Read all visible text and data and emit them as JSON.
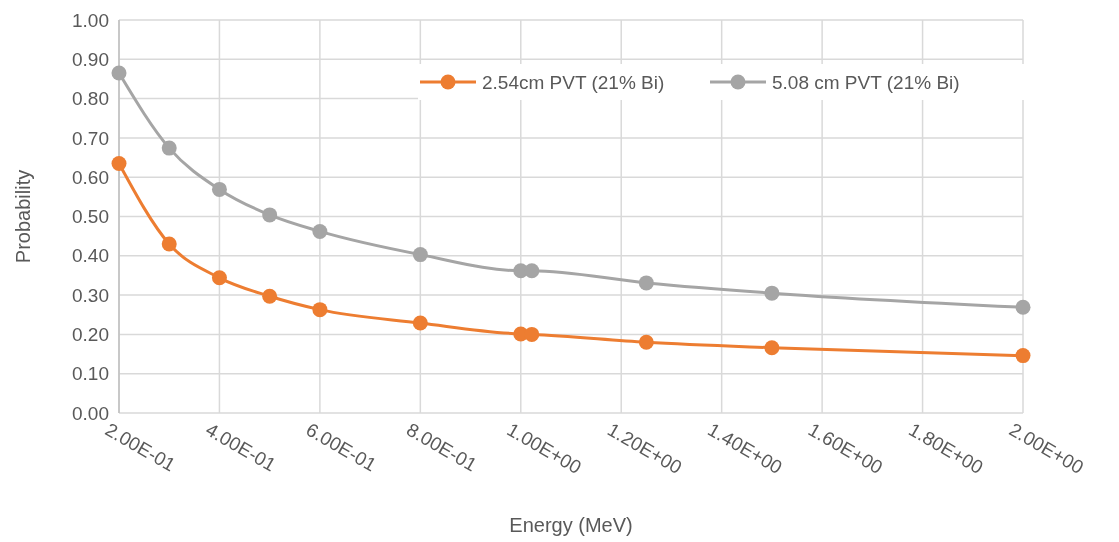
{
  "chart_data": {
    "type": "line",
    "xlabel": "Energy (MeV)",
    "ylabel": "Probability",
    "x": [
      0.2,
      0.3,
      0.4,
      0.5,
      0.6,
      0.8,
      1.0,
      1.022,
      1.25,
      1.5,
      2.0
    ],
    "series": [
      {
        "name": "2.54cm PVT (21% Bi)",
        "color": "#ed7d31",
        "values": [
          0.635,
          0.43,
          0.344,
          0.297,
          0.263,
          0.229,
          0.201,
          0.2,
          0.18,
          0.166,
          0.146
        ]
      },
      {
        "name": "5.08 cm PVT (21% Bi)",
        "color": "#a5a5a5",
        "values": [
          0.865,
          0.674,
          0.569,
          0.504,
          0.462,
          0.403,
          0.362,
          0.362,
          0.331,
          0.305,
          0.269
        ]
      }
    ],
    "xlim": [
      0.2,
      2.0
    ],
    "xticks": [
      {
        "value": 0.2,
        "label": "2.00E-01"
      },
      {
        "value": 0.4,
        "label": "4.00E-01"
      },
      {
        "value": 0.6,
        "label": "6.00E-01"
      },
      {
        "value": 0.8,
        "label": "8.00E-01"
      },
      {
        "value": 1.0,
        "label": "1.00E+00"
      },
      {
        "value": 1.2,
        "label": "1.20E+00"
      },
      {
        "value": 1.4,
        "label": "1.40E+00"
      },
      {
        "value": 1.6,
        "label": "1.60E+00"
      },
      {
        "value": 1.8,
        "label": "1.80E+00"
      },
      {
        "value": 2.0,
        "label": "2.00E+00"
      }
    ],
    "ylim": [
      0,
      1
    ],
    "yticks": [
      {
        "value": 0,
        "label": "0.00"
      },
      {
        "value": 0.1,
        "label": "0.10"
      },
      {
        "value": 0.2,
        "label": "0.20"
      },
      {
        "value": 0.3,
        "label": "0.30"
      },
      {
        "value": 0.4,
        "label": "0.40"
      },
      {
        "value": 0.5,
        "label": "0.50"
      },
      {
        "value": 0.6,
        "label": "0.60"
      },
      {
        "value": 0.7,
        "label": "0.70"
      },
      {
        "value": 0.8,
        "label": "0.80"
      },
      {
        "value": 0.9,
        "label": "0.90"
      },
      {
        "value": 1,
        "label": "1.00"
      }
    ],
    "grid": true,
    "legend": "top right",
    "marker": "circle",
    "line_style": "solid"
  }
}
